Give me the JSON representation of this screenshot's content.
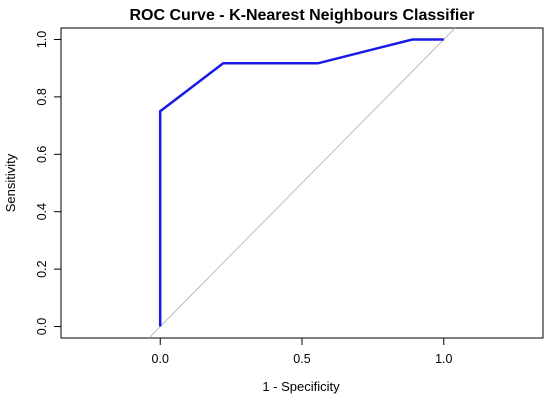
{
  "chart_data": {
    "type": "line",
    "title": "ROC Curve - K-Nearest Neighbours Classifier",
    "xlabel": "1 - Specificity",
    "ylabel": "Sensitivity",
    "xlim": [
      -0.35,
      1.35
    ],
    "ylim": [
      -0.04,
      1.04
    ],
    "xticks": [
      0.0,
      0.5,
      1.0
    ],
    "xtick_labels": [
      "0.0",
      "0.5",
      "1.0"
    ],
    "yticks": [
      0.0,
      0.2,
      0.4,
      0.6,
      0.8,
      1.0
    ],
    "ytick_labels": [
      "0.0",
      "0.2",
      "0.4",
      "0.6",
      "0.8",
      "1.0"
    ],
    "grid": false,
    "reference_line": {
      "x": [
        -0.04,
        1.04
      ],
      "y": [
        -0.04,
        1.04
      ],
      "color": "#bdbdbd"
    },
    "series": [
      {
        "x": [
          0.0,
          0.0,
          0.222,
          0.556,
          0.889,
          1.0
        ],
        "y": [
          0.0,
          0.75,
          0.917,
          0.917,
          1.0,
          1.0
        ],
        "color": "#1a1ae6"
      }
    ]
  }
}
